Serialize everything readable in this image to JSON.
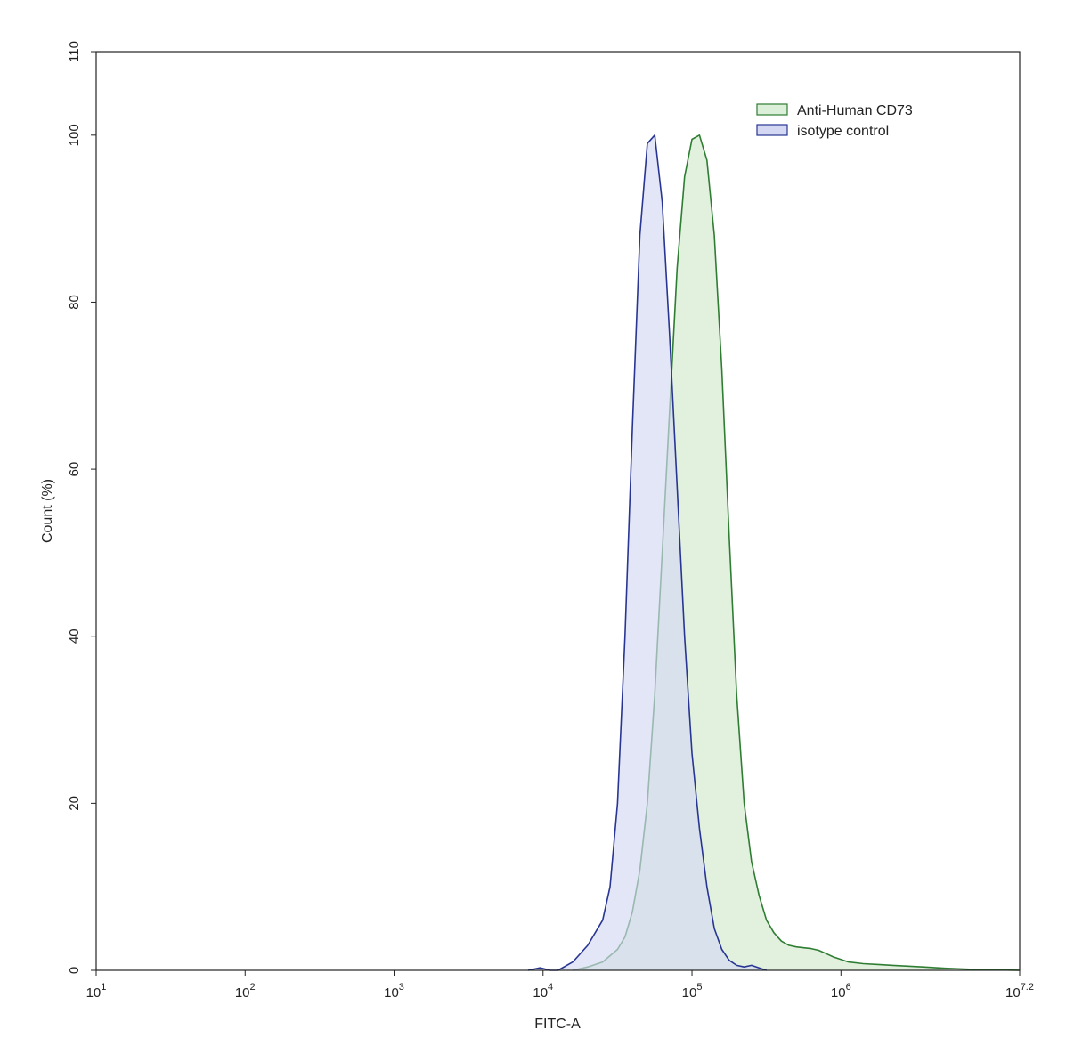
{
  "chart_data": {
    "type": "area",
    "title": "",
    "xlabel": "FITC-A",
    "ylabel": "Count  (%)",
    "x_scale": "log10",
    "xlim": [
      10,
      15848932
    ],
    "ylim": [
      0,
      110
    ],
    "grid": false,
    "legend_position": "top-right",
    "x_ticks": [
      {
        "base": "10",
        "exp": "1",
        "value": 10
      },
      {
        "base": "10",
        "exp": "2",
        "value": 100
      },
      {
        "base": "10",
        "exp": "3",
        "value": 1000
      },
      {
        "base": "10",
        "exp": "4",
        "value": 10000
      },
      {
        "base": "10",
        "exp": "5",
        "value": 100000
      },
      {
        "base": "10",
        "exp": "6",
        "value": 1000000
      },
      {
        "base": "10",
        "exp": "7.2",
        "value": 15848932
      }
    ],
    "y_ticks": [
      "0",
      "20",
      "40",
      "60",
      "80",
      "100",
      "110"
    ],
    "series": [
      {
        "name": "Anti-Human CD73",
        "line_color": "#2e7d32",
        "fill_color": "#dcefd8",
        "x": [
          15849,
          20000,
          25119,
          31623,
          35481,
          39811,
          44668,
          50119,
          56234,
          63096,
          70795,
          79433,
          89125,
          100000,
          112202,
          125893,
          141254,
          158489,
          177828,
          199526,
          223872,
          251189,
          281838,
          316228,
          354813,
          398107,
          446684,
          501187,
          562341,
          630957,
          707946,
          794328,
          891251,
          1000000,
          1122018,
          1412538,
          1778279,
          2238721,
          2818383,
          3548134,
          5011872,
          7943282,
          15848932
        ],
        "y": [
          0,
          0.4,
          1,
          2.5,
          4,
          7,
          12,
          20,
          33,
          50,
          67,
          84,
          95,
          99.5,
          100,
          97,
          88,
          72,
          52,
          33,
          20,
          13,
          9,
          6,
          4.5,
          3.5,
          3,
          2.8,
          2.7,
          2.6,
          2.4,
          2,
          1.6,
          1.3,
          1,
          0.8,
          0.7,
          0.6,
          0.5,
          0.4,
          0.25,
          0.1,
          0
        ]
      },
      {
        "name": "isotype control",
        "line_color": "#283593",
        "fill_color": "#d4d8f2",
        "x": [
          7943,
          9550,
          11220,
          12589,
          15849,
          19953,
          25119,
          28184,
          31623,
          35481,
          39811,
          44668,
          50119,
          56234,
          63096,
          70795,
          79433,
          89125,
          100000,
          112202,
          125893,
          141254,
          158489,
          177828,
          199526,
          223872,
          251189,
          281838,
          316228
        ],
        "y": [
          0,
          0.3,
          0,
          0,
          1,
          3,
          6,
          10,
          20,
          40,
          65,
          88,
          99,
          100,
          92,
          76,
          58,
          40,
          26,
          17,
          10,
          5,
          2.5,
          1.2,
          0.6,
          0.4,
          0.6,
          0.3,
          0
        ]
      }
    ]
  }
}
